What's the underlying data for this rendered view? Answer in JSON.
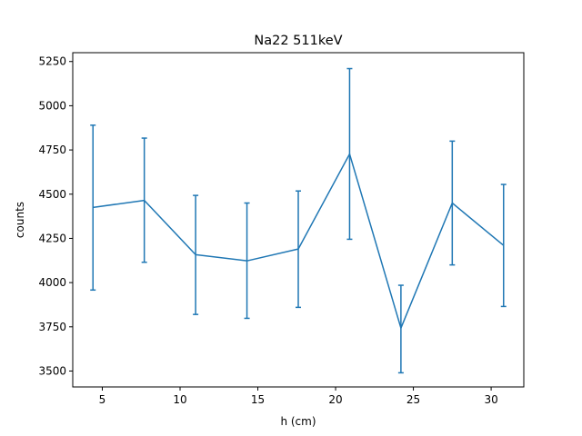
{
  "chart_data": {
    "type": "line",
    "title": "Na22 511keV",
    "xlabel": "h (cm)",
    "ylabel": "counts",
    "xlim": [
      3.1,
      32.1
    ],
    "ylim": [
      3410,
      5300
    ],
    "xticks": [
      5,
      10,
      15,
      20,
      25,
      30
    ],
    "yticks": [
      3500,
      3750,
      4000,
      4250,
      4500,
      4750,
      5000,
      5250
    ],
    "grid": false,
    "series": [
      {
        "color": "#1f77b4",
        "error_bars": true,
        "x": [
          4.4,
          7.7,
          11.0,
          14.3,
          17.6,
          20.9,
          24.2,
          27.5,
          30.8
        ],
        "y": [
          4425,
          4465,
          4158,
          4123,
          4190,
          4727,
          3743,
          4450,
          4210
        ],
        "yerr_lower": [
          3958,
          4115,
          3820,
          3798,
          3860,
          4245,
          3490,
          4100,
          3865
        ],
        "yerr_upper": [
          4890,
          4817,
          4493,
          4450,
          4518,
          5210,
          3985,
          4800,
          4555
        ]
      }
    ]
  }
}
